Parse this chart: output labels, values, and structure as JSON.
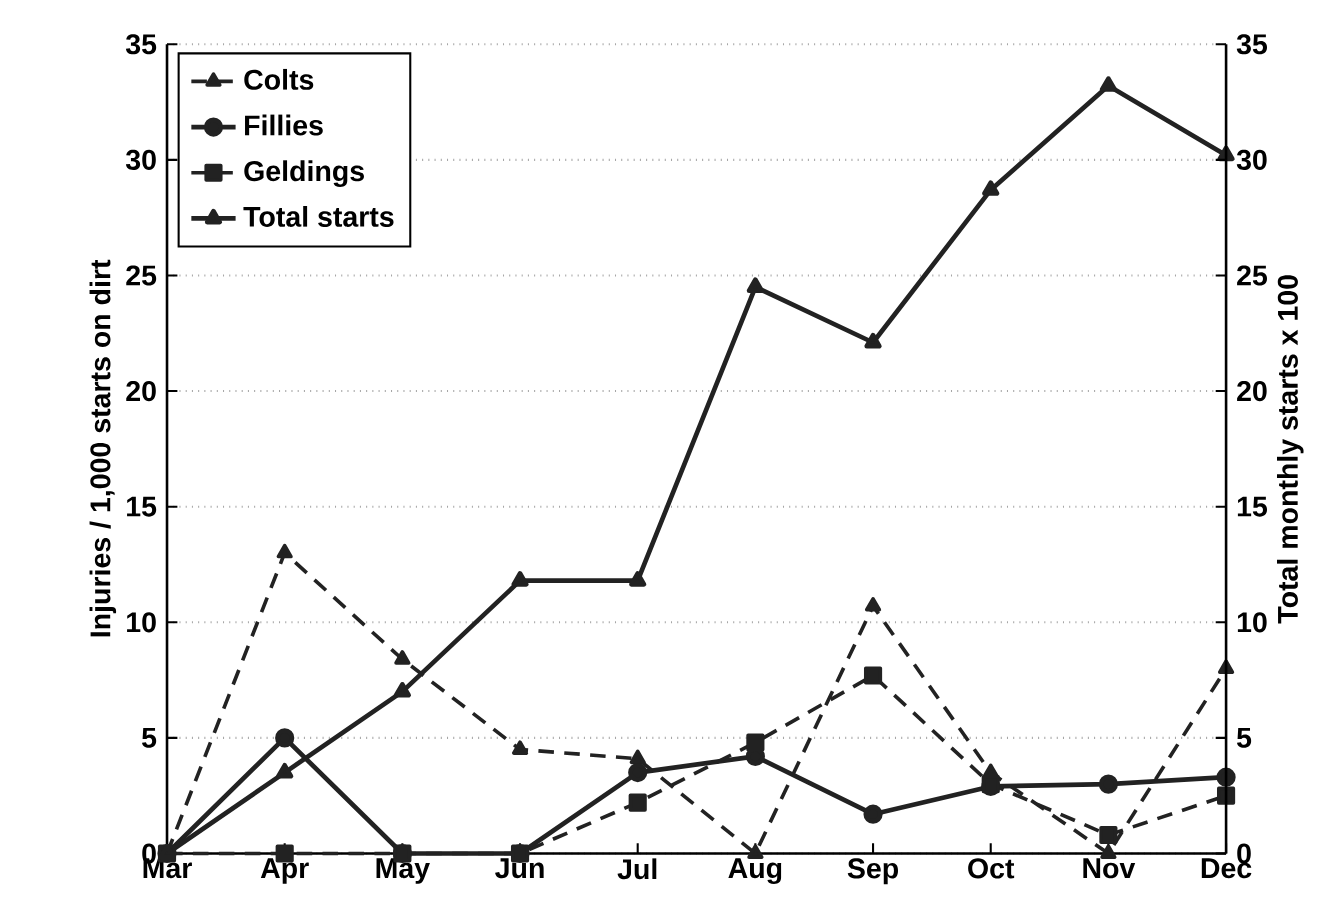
{
  "chart_data": {
    "type": "line",
    "categories": [
      "Mar",
      "Apr",
      "May",
      "Jun",
      "Jul",
      "Aug",
      "Sep",
      "Oct",
      "Nov",
      "Dec"
    ],
    "ylabel": "Injuries / 1,000 starts on dirt",
    "y2label": "Total monthly starts x 100",
    "ylim": [
      0,
      35
    ],
    "yticks": [
      0,
      5,
      10,
      15,
      20,
      25,
      30,
      35
    ],
    "y2lim": [
      0,
      35
    ],
    "y2ticks": [
      0,
      5,
      10,
      15,
      20,
      25,
      30,
      35
    ],
    "grid": "y",
    "legend": "top left",
    "series": [
      {
        "name": "Colts",
        "color": "#222222",
        "marker": "triangle",
        "line_style": "dashed",
        "values": [
          0,
          13.0,
          8.4,
          4.5,
          4.1,
          0,
          10.7,
          3.5,
          0,
          8.0
        ]
      },
      {
        "name": "Fillies",
        "color": "#222222",
        "marker": "circle",
        "line_style": "solid",
        "values": [
          0,
          5.0,
          0,
          0,
          3.5,
          4.2,
          1.7,
          2.9,
          3.0,
          3.3
        ]
      },
      {
        "name": "Geldings",
        "color": "#222222",
        "marker": "square",
        "line_style": "dashed",
        "values": [
          0,
          0,
          0,
          0,
          2.2,
          4.8,
          7.7,
          3.0,
          0.8,
          2.5
        ]
      },
      {
        "name": "Total starts",
        "color": "#222222",
        "marker": "triangle",
        "line_style": "solid",
        "axis": "y2",
        "values": [
          0,
          3.5,
          7.0,
          11.8,
          11.8,
          24.5,
          22.1,
          28.7,
          33.2,
          30.2
        ]
      }
    ]
  }
}
